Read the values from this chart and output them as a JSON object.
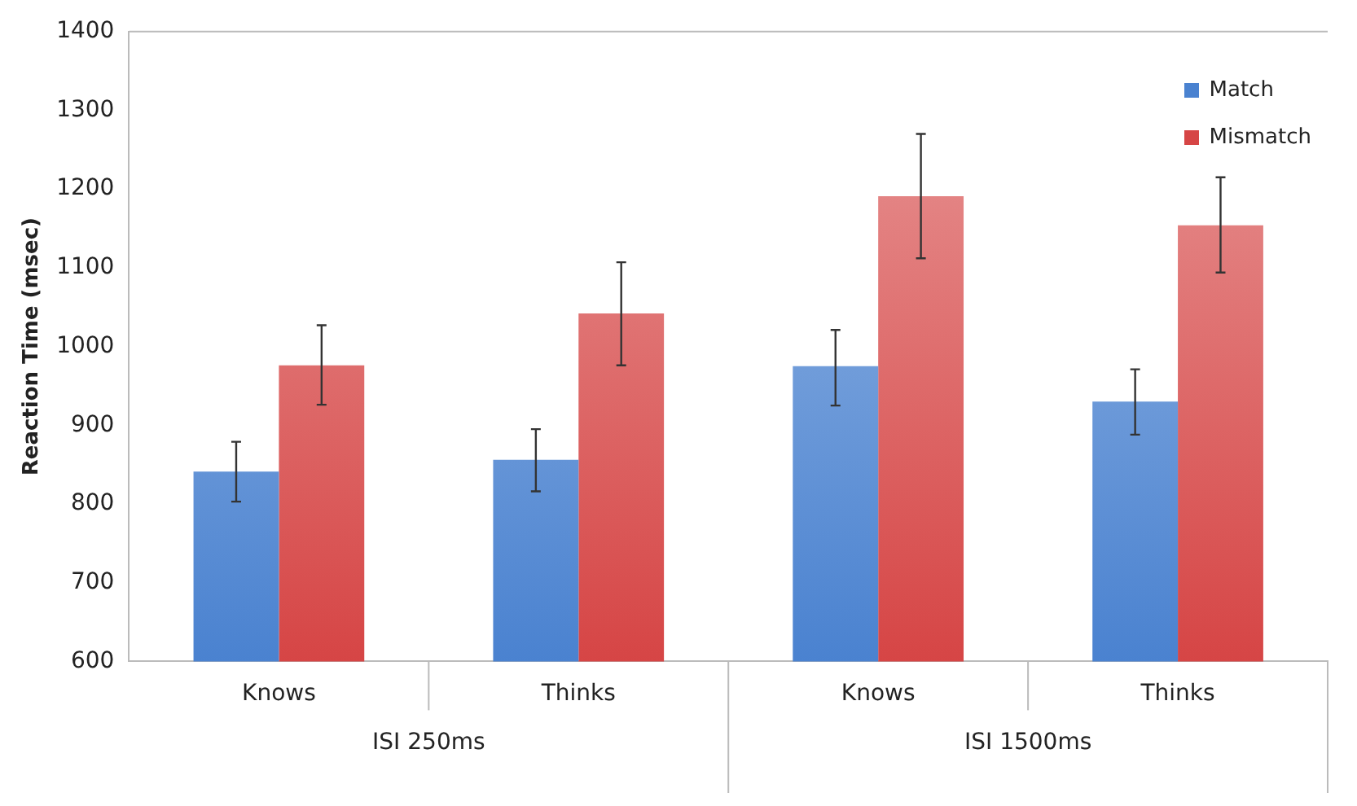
{
  "chart_data": {
    "type": "bar",
    "ylabel": "Reaction Time (msec)",
    "categories": [
      "Knows",
      "Thinks",
      "Knows",
      "Thinks"
    ],
    "series": [
      {
        "name": "Match",
        "color": "#4a82d0",
        "values": [
          841,
          856,
          975,
          930
        ],
        "errors": [
          [
            803,
            879
          ],
          [
            816,
            895
          ],
          [
            925,
            1021
          ],
          [
            888,
            971
          ]
        ]
      },
      {
        "name": "Mismatch",
        "color": "#d64545",
        "values": [
          976,
          1042,
          1191,
          1154
        ],
        "errors": [
          [
            926,
            1027
          ],
          [
            976,
            1107
          ],
          [
            1112,
            1270
          ],
          [
            1094,
            1215
          ]
        ]
      }
    ],
    "ylim": [
      600,
      1400
    ],
    "yticks": [
      600,
      700,
      800,
      900,
      1000,
      1100,
      1200,
      1300,
      1400
    ],
    "grid": false,
    "legend": "top right",
    "annotations": [
      "ISI 250ms",
      "ISI 1500ms"
    ]
  }
}
